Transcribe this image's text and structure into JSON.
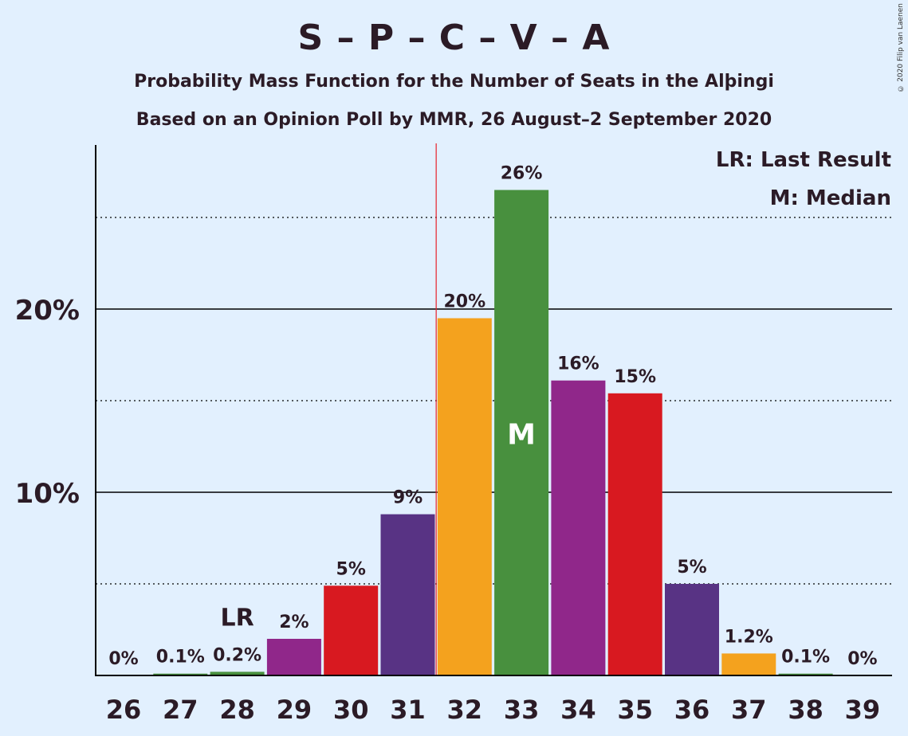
{
  "title": "S – P – C – V – A",
  "subtitle_1": "Probability Mass Function for the Number of Seats in the Alþingi",
  "subtitle_2": "Based on an Opinion Poll by MMR, 26 August–2 September 2020",
  "copyright": "© 2020 Filip van Laenen",
  "legend": {
    "last_result": "LR: Last Result",
    "median": "M: Median"
  },
  "markers": {
    "last_result_label": "LR",
    "median_label": "M",
    "last_result_seat": 28,
    "median_seat": 33,
    "majority_line_at": 31.5
  },
  "colors": {
    "background": "#e2f0fe",
    "majority_line": "#e8202a",
    "text": "#2b1b26"
  },
  "chart_data": {
    "type": "bar",
    "categories": [
      "26",
      "27",
      "28",
      "29",
      "30",
      "31",
      "32",
      "33",
      "34",
      "35",
      "36",
      "37",
      "38",
      "39"
    ],
    "values": [
      0,
      0.1,
      0.2,
      2.0,
      4.9,
      8.8,
      19.5,
      26.5,
      16.1,
      15.4,
      5.0,
      1.2,
      0.1,
      0
    ],
    "value_labels": [
      "0%",
      "0.1%",
      "0.2%",
      "2%",
      "5%",
      "9%",
      "20%",
      "26%",
      "16%",
      "15%",
      "5%",
      "1.2%",
      "0.1%",
      "0%"
    ],
    "bar_colors": [
      "#48903e",
      "#48903e",
      "#48903e",
      "#90278a",
      "#d81920",
      "#583384",
      "#f4a21e",
      "#48903e",
      "#90278a",
      "#d81920",
      "#583384",
      "#f4a21e",
      "#48903e",
      "#48903e"
    ],
    "ylim": [
      0,
      29
    ],
    "major_ticks": [
      10,
      20
    ],
    "major_tick_labels": [
      "10%",
      "20%"
    ],
    "minor_gridlines": [
      5,
      15,
      25
    ],
    "grid": true,
    "legend_position": "top-right"
  }
}
